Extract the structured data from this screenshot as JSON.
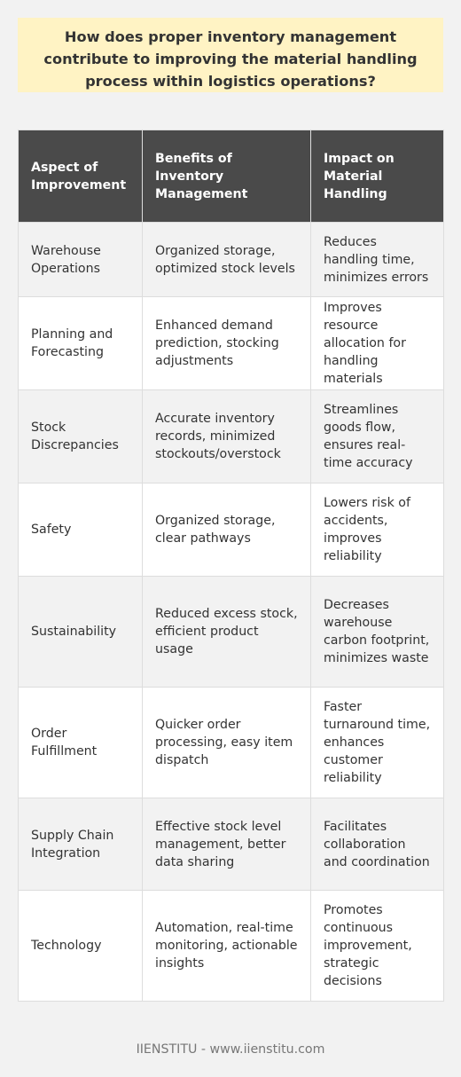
{
  "question": "How does proper inventory management contribute to improving the material handling process within logistics operations?",
  "table": {
    "headers": [
      "Aspect of Improvement",
      "Benefits of Inventory Management",
      "Impact on Material Handling"
    ],
    "rows": [
      [
        "Warehouse Operations",
        "Organized storage, optimized stock levels",
        "Reduces handling time, minimizes errors"
      ],
      [
        "Planning and Forecasting",
        "Enhanced demand prediction, stocking adjustments",
        "Improves resource allocation for handling materials"
      ],
      [
        "Stock Discrepancies",
        "Accurate inventory records, minimized stockouts/overstock",
        "Streamlines goods flow, ensures real-time accuracy"
      ],
      [
        "Safety",
        "Organized storage, clear pathways",
        "Lowers risk of accidents, improves reliability"
      ],
      [
        "Sustainability",
        "Reduced excess stock, efficient product usage",
        "Decreases warehouse carbon footprint, minimizes waste"
      ],
      [
        "Order Fulfillment",
        "Quicker order processing, easy item dispatch",
        "Faster turnaround time, enhances customer reliability"
      ],
      [
        "Supply Chain Integration",
        "Effective stock level management, better data sharing",
        "Facilitates collaboration and coordination"
      ],
      [
        "Technology",
        "Automation, real-time monitoring, actionable insights",
        "Promotes continuous improvement, strategic decisions"
      ]
    ]
  },
  "footer": "IIENSTITU - www.iienstitu.com",
  "colors": {
    "page_background": "#f2f2f2",
    "question_background": "#fff3c4",
    "header_background": "#4a4a4a",
    "header_text": "#ffffff",
    "body_text": "#333333",
    "footer_text": "#777777"
  }
}
